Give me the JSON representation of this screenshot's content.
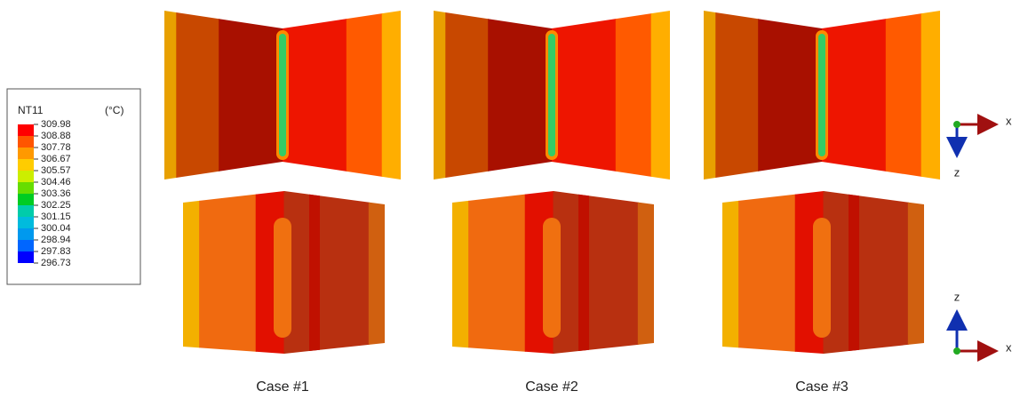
{
  "legend": {
    "title": "NT11",
    "unit": "(°C)",
    "labels": [
      "309.98",
      "308.88",
      "307.78",
      "306.67",
      "305.57",
      "304.46",
      "303.36",
      "302.25",
      "301.15",
      "300.04",
      "298.94",
      "297.83",
      "296.73"
    ],
    "colors": [
      "#ff0000",
      "#ff5500",
      "#ff9900",
      "#ffcc00",
      "#ccee00",
      "#66dd00",
      "#00cc22",
      "#00ccaa",
      "#00bbdd",
      "#0099ee",
      "#0066ff",
      "#0000ff"
    ]
  },
  "cases": [
    "Case #1",
    "Case #2",
    "Case #3"
  ],
  "axes": {
    "top": {
      "x": "x",
      "z": "z"
    },
    "bottom": {
      "x": "x",
      "z": "z"
    }
  }
}
